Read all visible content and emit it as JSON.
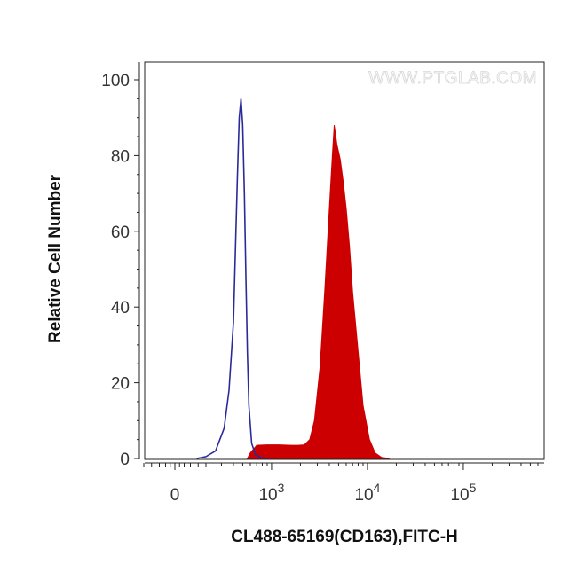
{
  "chart_data": {
    "type": "area",
    "watermark": "WWW.PTGLAB.COM",
    "xlabel": "CL488-65169(CD163),FITC-H",
    "ylabel": "Relative Cell Number",
    "ylim": [
      0,
      100
    ],
    "xscale": "biexponential",
    "y_ticks": [
      "0",
      "20",
      "40",
      "60",
      "80",
      "100"
    ],
    "x_ticks": [
      {
        "base": "0",
        "exp": ""
      },
      {
        "base": "10",
        "exp": "3"
      },
      {
        "base": "10",
        "exp": "4"
      },
      {
        "base": "10",
        "exp": "5"
      }
    ],
    "grid": false,
    "series": [
      {
        "style": "outline",
        "color": "#2a2a9a",
        "x": [
          140,
          200,
          260,
          320,
          360,
          400,
          420,
          440,
          460,
          480,
          500,
          520,
          540,
          560,
          580,
          620,
          680,
          760,
          900
        ],
        "y": [
          0,
          0.5,
          2,
          8,
          18,
          36,
          55,
          74,
          90,
          95,
          88,
          70,
          48,
          28,
          14,
          4,
          1,
          0.3,
          0
        ]
      },
      {
        "style": "filled",
        "color": "#cc0000",
        "x": [
          560,
          600,
          700,
          900,
          1200,
          1600,
          1900,
          2200,
          2500,
          2800,
          3200,
          3600,
          4000,
          4300,
          4500,
          4800,
          5200,
          5600,
          6000,
          6500,
          7000,
          8000,
          9000,
          10500,
          12000,
          14000,
          17000
        ],
        "y": [
          0,
          1.5,
          3.5,
          3.6,
          3.6,
          3.5,
          3.5,
          3.6,
          5,
          10,
          24,
          45,
          66,
          80,
          88,
          83,
          79,
          73,
          66,
          56,
          44,
          28,
          14,
          5,
          1.5,
          0.3,
          0
        ]
      }
    ]
  }
}
